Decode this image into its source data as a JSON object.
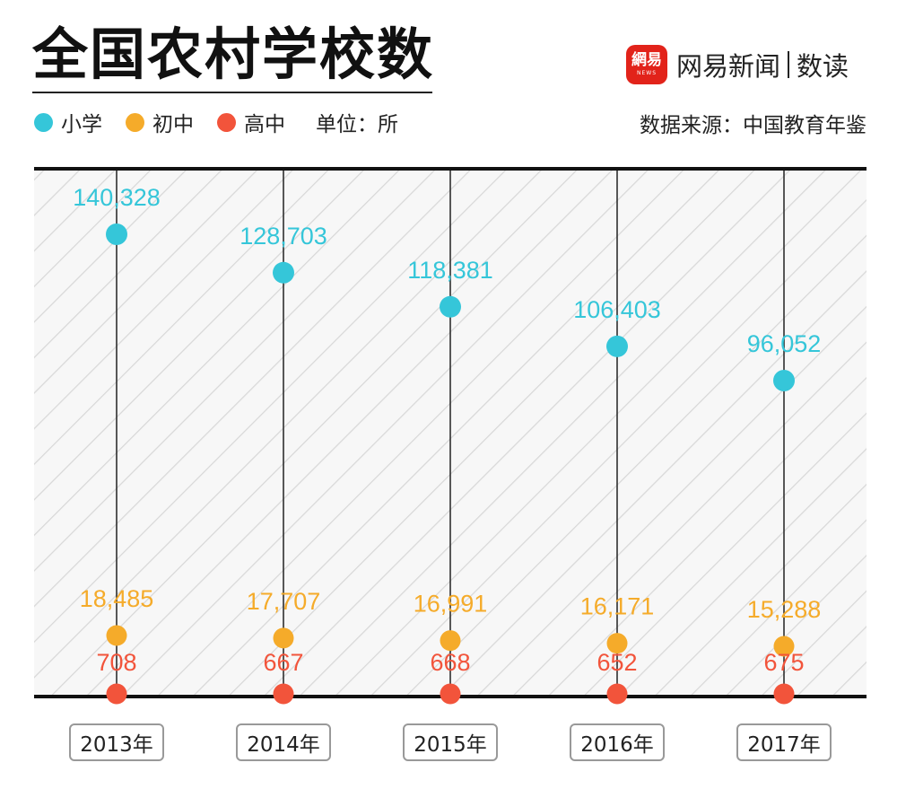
{
  "title": "全国农村学校数",
  "unit_label": "单位：所",
  "source": "数据来源：中国教育年鉴",
  "brand": {
    "logo_cn": "網易",
    "logo_en": "NEWS",
    "name": "网易新闻",
    "sub": "数读"
  },
  "colors": {
    "primary": "#35c6d9",
    "middle": "#f5ab2a",
    "high": "#f2543b",
    "axis": "#111111"
  },
  "chart_data": {
    "type": "scatter",
    "title": "全国农村学校数",
    "categories": [
      "2013年",
      "2014年",
      "2015年",
      "2016年",
      "2017年"
    ],
    "series": [
      {
        "name": "小学",
        "color": "#35c6d9",
        "values": [
          140328,
          128703,
          118381,
          106403,
          96052
        ],
        "labels": [
          "140,328",
          "128,703",
          "118,381",
          "106,403",
          "96,052"
        ]
      },
      {
        "name": "初中",
        "color": "#f5ab2a",
        "values": [
          18485,
          17707,
          16991,
          16171,
          15288
        ],
        "labels": [
          "18,485",
          "17,707",
          "16,991",
          "16,171",
          "15,288"
        ]
      },
      {
        "name": "高中",
        "color": "#f2543b",
        "values": [
          708,
          667,
          668,
          652,
          675
        ],
        "labels": [
          "708",
          "667",
          "668",
          "652",
          "675"
        ]
      }
    ],
    "ylim": [
      0,
      150000
    ],
    "legend_position": "top-left",
    "grid": false
  }
}
